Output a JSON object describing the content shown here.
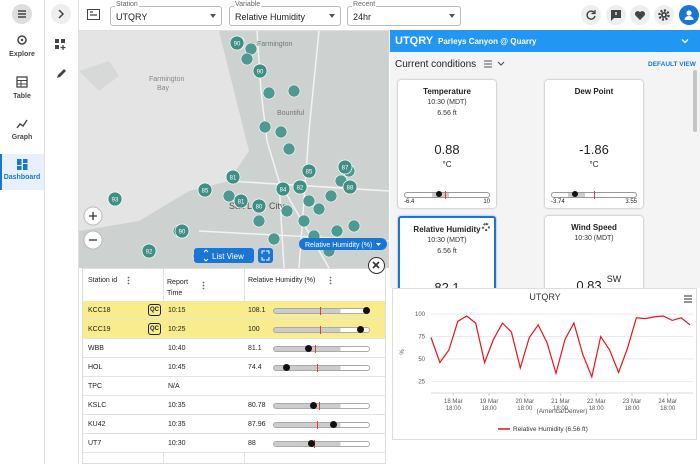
{
  "sidebar": {
    "items": [
      "Explore",
      "Table",
      "Graph",
      "Dashboard"
    ]
  },
  "toolbar": {
    "station": {
      "label": "Station",
      "value": "UTQRY"
    },
    "variable": {
      "label": "Variable",
      "value": "Relative Humidity"
    },
    "recent": {
      "label": "Recent",
      "value": "24hr"
    }
  },
  "map": {
    "places": [
      "Farmington",
      "Bay",
      "Bountiful",
      "Salt Lake City"
    ],
    "markers": [
      "90",
      "90",
      "93",
      "92",
      "90",
      "81",
      "85",
      "84",
      "82",
      "87",
      "88",
      "81",
      "85",
      "80"
    ],
    "list_view": "List View",
    "variable_chip": "Relative Humidity (%)"
  },
  "table": {
    "headers": [
      "Station id",
      "Report Time",
      "Relative Humidity (%)"
    ],
    "rows": [
      {
        "id": "KCC18",
        "flag": "QC",
        "time": "10:15",
        "value": "108.1"
      },
      {
        "id": "KCC19",
        "flag": "QC",
        "time": "10:25",
        "value": "100"
      },
      {
        "id": "WBB",
        "time": "10:40",
        "value": "81.1"
      },
      {
        "id": "HOL",
        "time": "10:45",
        "value": "74.4"
      },
      {
        "id": "TPC",
        "time": "N/A"
      },
      {
        "id": "KSLC",
        "time": "10:35",
        "value": "80.78"
      },
      {
        "id": "KU42",
        "time": "10:35",
        "value": "87.96"
      },
      {
        "id": "UT7",
        "time": "10:30",
        "value": "88"
      }
    ]
  },
  "panel": {
    "station": "UTQRY",
    "name": "Parleys Canyon @ Quarry",
    "section": "Current conditions",
    "default_view": "DEFAULT VIEW",
    "cards": [
      {
        "title": "Temperature",
        "time": "10:30 (MDT)",
        "height": "6.56 ft",
        "value": "0.88",
        "unit": "°C",
        "min": "-6.4",
        "max": "10"
      },
      {
        "title": "Dew Point",
        "value": "-1.86",
        "unit": "°C",
        "min": "-3.74",
        "max": "3.55"
      },
      {
        "title": "Relative Humidity",
        "time": "10:30 (MDT)",
        "height": "6.56 ft",
        "value": "82.1"
      },
      {
        "title": "Wind Speed",
        "time": "10:30 (MDT)",
        "value": "0.83",
        "unit": "SW"
      }
    ]
  },
  "chart_data": {
    "type": "line",
    "title": "UTQRY",
    "y_label": "%",
    "x_label": "(America/Denver)",
    "x": [
      "18 Mar 03:00",
      "18 Mar 09:00",
      "18 Mar 15:00",
      "18 Mar 21:00",
      "19 Mar 03:00",
      "19 Mar 09:00",
      "19 Mar 15:00",
      "19 Mar 21:00",
      "20 Mar 03:00",
      "20 Mar 09:00",
      "20 Mar 15:00",
      "20 Mar 21:00",
      "21 Mar 03:00",
      "21 Mar 09:00",
      "21 Mar 15:00",
      "21 Mar 21:00",
      "22 Mar 03:00",
      "22 Mar 09:00",
      "22 Mar 15:00",
      "22 Mar 21:00",
      "23 Mar 03:00",
      "23 Mar 09:00",
      "23 Mar 15:00",
      "23 Mar 21:00",
      "24 Mar 03:00",
      "24 Mar 09:00",
      "24 Mar 15:00",
      "24 Mar 21:00",
      "25 Mar 03:00",
      "25 Mar 09:00"
    ],
    "series": [
      {
        "name": "Relative Humidity (6.56 ft)",
        "color": "#e8141c",
        "values": [
          74,
          46,
          60,
          92,
          98,
          90,
          46,
          72,
          90,
          80,
          40,
          74,
          88,
          68,
          34,
          72,
          90,
          55,
          30,
          75,
          60,
          35,
          62,
          96,
          95,
          97,
          98,
          93,
          96,
          88
        ]
      }
    ],
    "xlim": [
      "18 Mar 03:00",
      "25 Mar 11:00"
    ],
    "xticks": [
      {
        "value": "18 Mar 18:00",
        "label": [
          "18 Mar",
          "18:00"
        ]
      },
      {
        "value": "19 Mar 18:00",
        "label": [
          "19 Mar",
          "18:00"
        ]
      },
      {
        "value": "20 Mar 18:00",
        "label": [
          "20 Mar",
          "18:00"
        ]
      },
      {
        "value": "21 Mar 18:00",
        "label": [
          "21 Mar",
          "18:00"
        ]
      },
      {
        "value": "22 Mar 18:00",
        "label": [
          "22 Mar",
          "18:00"
        ]
      },
      {
        "value": "23 Mar 18:00",
        "label": [
          "23 Mar",
          "18:00"
        ]
      },
      {
        "value": "24 Mar 18:00",
        "label": [
          "24 Mar",
          "18:00"
        ]
      }
    ],
    "ylim": [
      12,
      108
    ],
    "yticks": [
      25,
      50,
      75,
      100
    ],
    "grid": true,
    "legend": "bottom"
  }
}
